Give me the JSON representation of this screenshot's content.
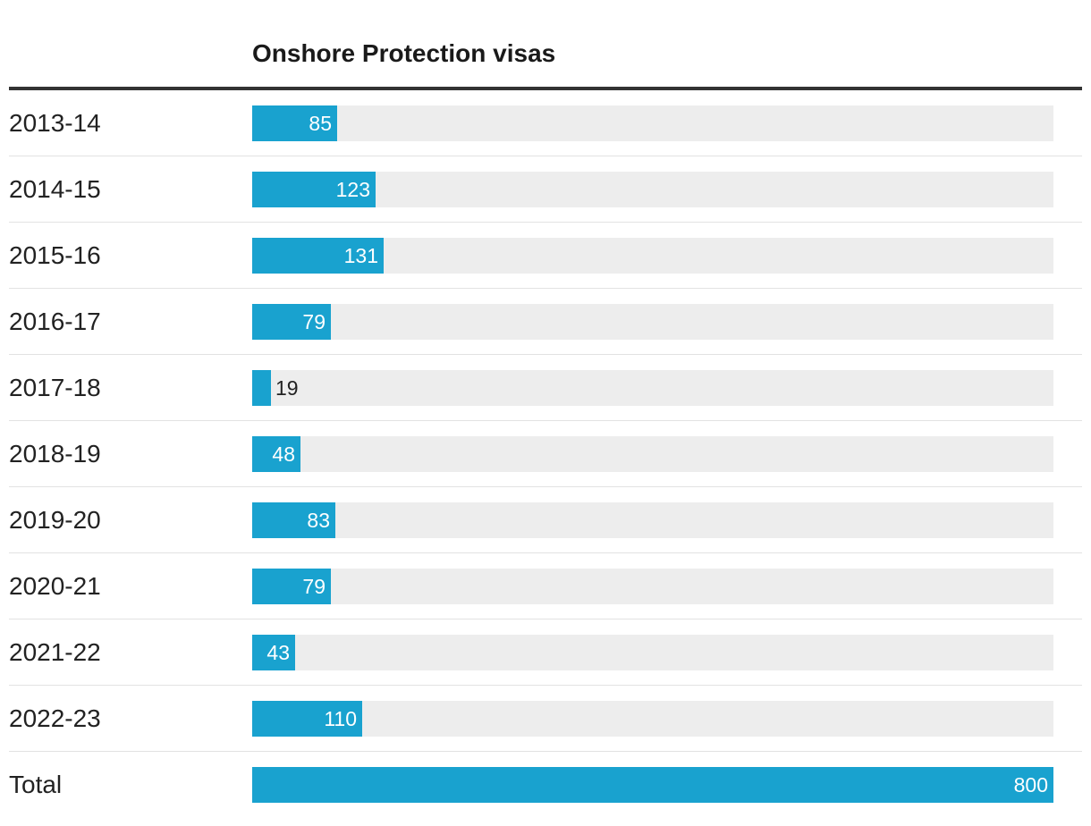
{
  "chart_data": {
    "type": "bar",
    "orientation": "horizontal",
    "title": "Onshore Protection visas",
    "xlabel": "",
    "ylabel": "",
    "xlim": [
      0,
      800
    ],
    "categories": [
      "2013-14",
      "2014-15",
      "2015-16",
      "2016-17",
      "2017-18",
      "2018-19",
      "2019-20",
      "2020-21",
      "2021-22",
      "2022-23",
      "Total"
    ],
    "values": [
      85,
      123,
      131,
      79,
      19,
      48,
      83,
      79,
      43,
      110,
      800
    ],
    "grid": false,
    "legend": "none"
  },
  "colors": {
    "bar": "#19a2cf",
    "track": "#ededed",
    "header_rule": "#333333",
    "separator": "#e2e2e2"
  }
}
